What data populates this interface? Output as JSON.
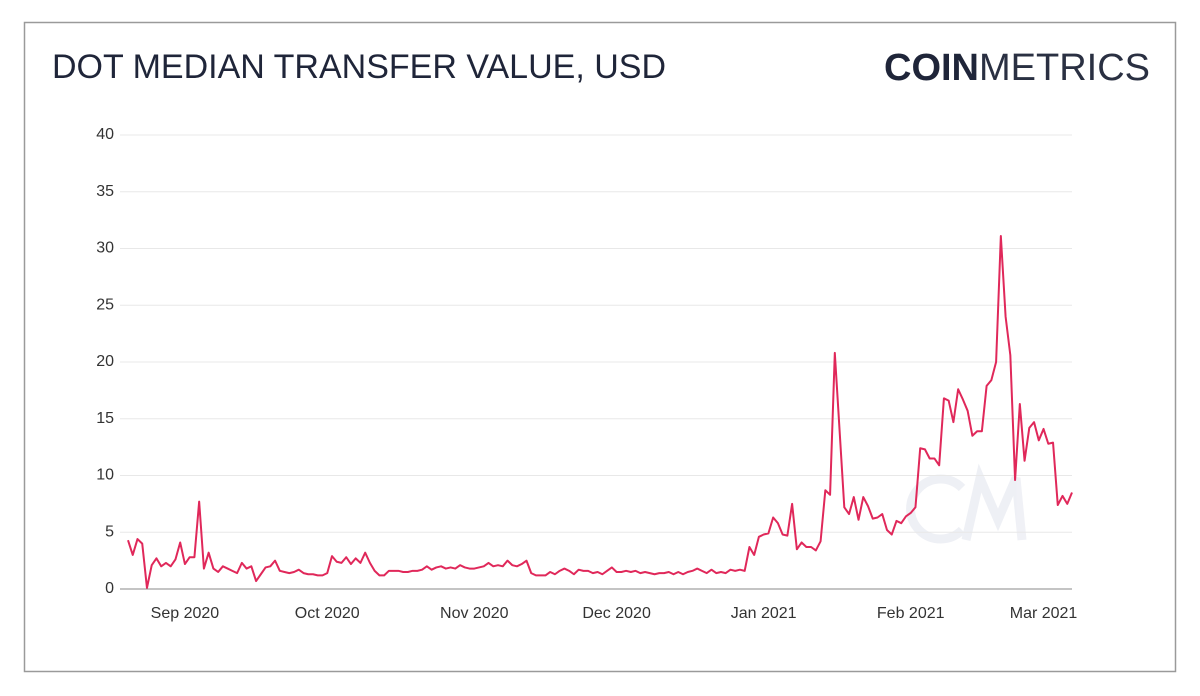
{
  "chart_data": {
    "type": "line",
    "title": "DOT MEDIAN TRANSFER VALUE, USD",
    "logo": {
      "bold": "COIN",
      "light": "METRICS"
    },
    "color": "#e0285a",
    "grid": true,
    "ylim": [
      0,
      40
    ],
    "yticks": [
      0,
      5,
      10,
      15,
      20,
      25,
      30,
      35,
      40
    ],
    "categories": [
      null,
      null,
      null,
      null,
      null,
      null,
      null,
      null,
      null,
      null,
      null,
      null,
      "Sep 2020",
      null,
      null,
      null,
      null,
      null,
      null,
      null,
      null,
      null,
      null,
      null,
      null,
      null,
      null,
      null,
      null,
      null,
      null,
      null,
      null,
      null,
      null,
      null,
      null,
      null,
      null,
      null,
      null,
      null,
      "Oct 2020",
      null,
      null,
      null,
      null,
      null,
      null,
      null,
      null,
      null,
      null,
      null,
      null,
      null,
      null,
      null,
      null,
      null,
      null,
      null,
      null,
      null,
      null,
      null,
      null,
      null,
      null,
      null,
      null,
      null,
      null,
      "Nov 2020",
      null,
      null,
      null,
      null,
      null,
      null,
      null,
      null,
      null,
      null,
      null,
      null,
      null,
      null,
      null,
      null,
      null,
      null,
      null,
      null,
      null,
      null,
      null,
      null,
      null,
      null,
      null,
      null,
      null,
      "Dec 2020",
      null,
      null,
      null,
      null,
      null,
      null,
      null,
      null,
      null,
      null,
      null,
      null,
      null,
      null,
      null,
      null,
      null,
      null,
      null,
      null,
      null,
      null,
      null,
      null,
      null,
      null,
      null,
      null,
      null,
      null,
      "Jan 2021",
      null,
      null,
      null,
      null,
      null,
      null,
      null,
      null,
      null,
      null,
      null,
      null,
      null,
      null,
      null,
      null,
      null,
      null,
      null,
      null,
      null,
      null,
      null,
      null,
      null,
      null,
      null,
      null,
      null,
      null,
      "Feb 2021",
      null,
      null,
      null,
      null,
      null,
      null,
      null,
      null,
      null,
      null,
      null,
      null,
      null,
      null,
      null,
      null,
      null,
      null,
      null,
      null,
      null,
      null,
      null,
      null,
      null,
      null,
      null,
      "Mar 2021",
      null,
      null,
      null,
      null,
      null,
      null
    ],
    "values": [
      4.3,
      3.0,
      4.4,
      4.0,
      0.1,
      2.1,
      2.7,
      2.0,
      2.3,
      2.0,
      2.6,
      4.1,
      2.2,
      2.8,
      2.8,
      7.7,
      1.8,
      3.2,
      1.8,
      1.5,
      2.0,
      1.8,
      1.6,
      1.4,
      2.3,
      1.8,
      2.0,
      0.7,
      1.3,
      1.9,
      2.0,
      2.5,
      1.6,
      1.5,
      1.4,
      1.5,
      1.7,
      1.4,
      1.3,
      1.3,
      1.2,
      1.2,
      1.4,
      2.9,
      2.4,
      2.3,
      2.8,
      2.2,
      2.7,
      2.3,
      3.2,
      2.3,
      1.6,
      1.2,
      1.2,
      1.6,
      1.6,
      1.6,
      1.5,
      1.5,
      1.6,
      1.6,
      1.7,
      2.0,
      1.7,
      1.9,
      2.0,
      1.8,
      1.9,
      1.8,
      2.1,
      1.9,
      1.8,
      1.8,
      1.9,
      2.0,
      2.3,
      2.0,
      2.1,
      2.0,
      2.5,
      2.1,
      2.0,
      2.2,
      2.5,
      1.4,
      1.2,
      1.2,
      1.2,
      1.5,
      1.3,
      1.6,
      1.8,
      1.6,
      1.3,
      1.7,
      1.6,
      1.6,
      1.4,
      1.5,
      1.3,
      1.6,
      1.9,
      1.5,
      1.5,
      1.6,
      1.5,
      1.6,
      1.4,
      1.5,
      1.4,
      1.3,
      1.4,
      1.4,
      1.5,
      1.3,
      1.5,
      1.3,
      1.5,
      1.6,
      1.8,
      1.6,
      1.4,
      1.7,
      1.4,
      1.5,
      1.4,
      1.7,
      1.6,
      1.7,
      1.6,
      3.7,
      3.0,
      4.6,
      4.8,
      4.9,
      6.3,
      5.8,
      4.8,
      4.7,
      7.5,
      3.5,
      4.1,
      3.7,
      3.7,
      3.4,
      4.2,
      8.7,
      8.3,
      20.8,
      14.0,
      7.2,
      6.6,
      8.1,
      6.1,
      8.1,
      7.3,
      6.2,
      6.3,
      6.6,
      5.2,
      4.8,
      6.0,
      5.8,
      6.4,
      6.7,
      7.2,
      12.4,
      12.3,
      11.5,
      11.5,
      10.9,
      16.8,
      16.6,
      14.7,
      17.6,
      16.7,
      15.7,
      13.5,
      13.9,
      13.9,
      17.9,
      18.4,
      20.0,
      31.1,
      24.0,
      20.6,
      9.6,
      16.3,
      11.3,
      14.2,
      14.7,
      13.1,
      14.1,
      12.8,
      12.9,
      7.4,
      8.2,
      7.5,
      8.5
    ]
  }
}
